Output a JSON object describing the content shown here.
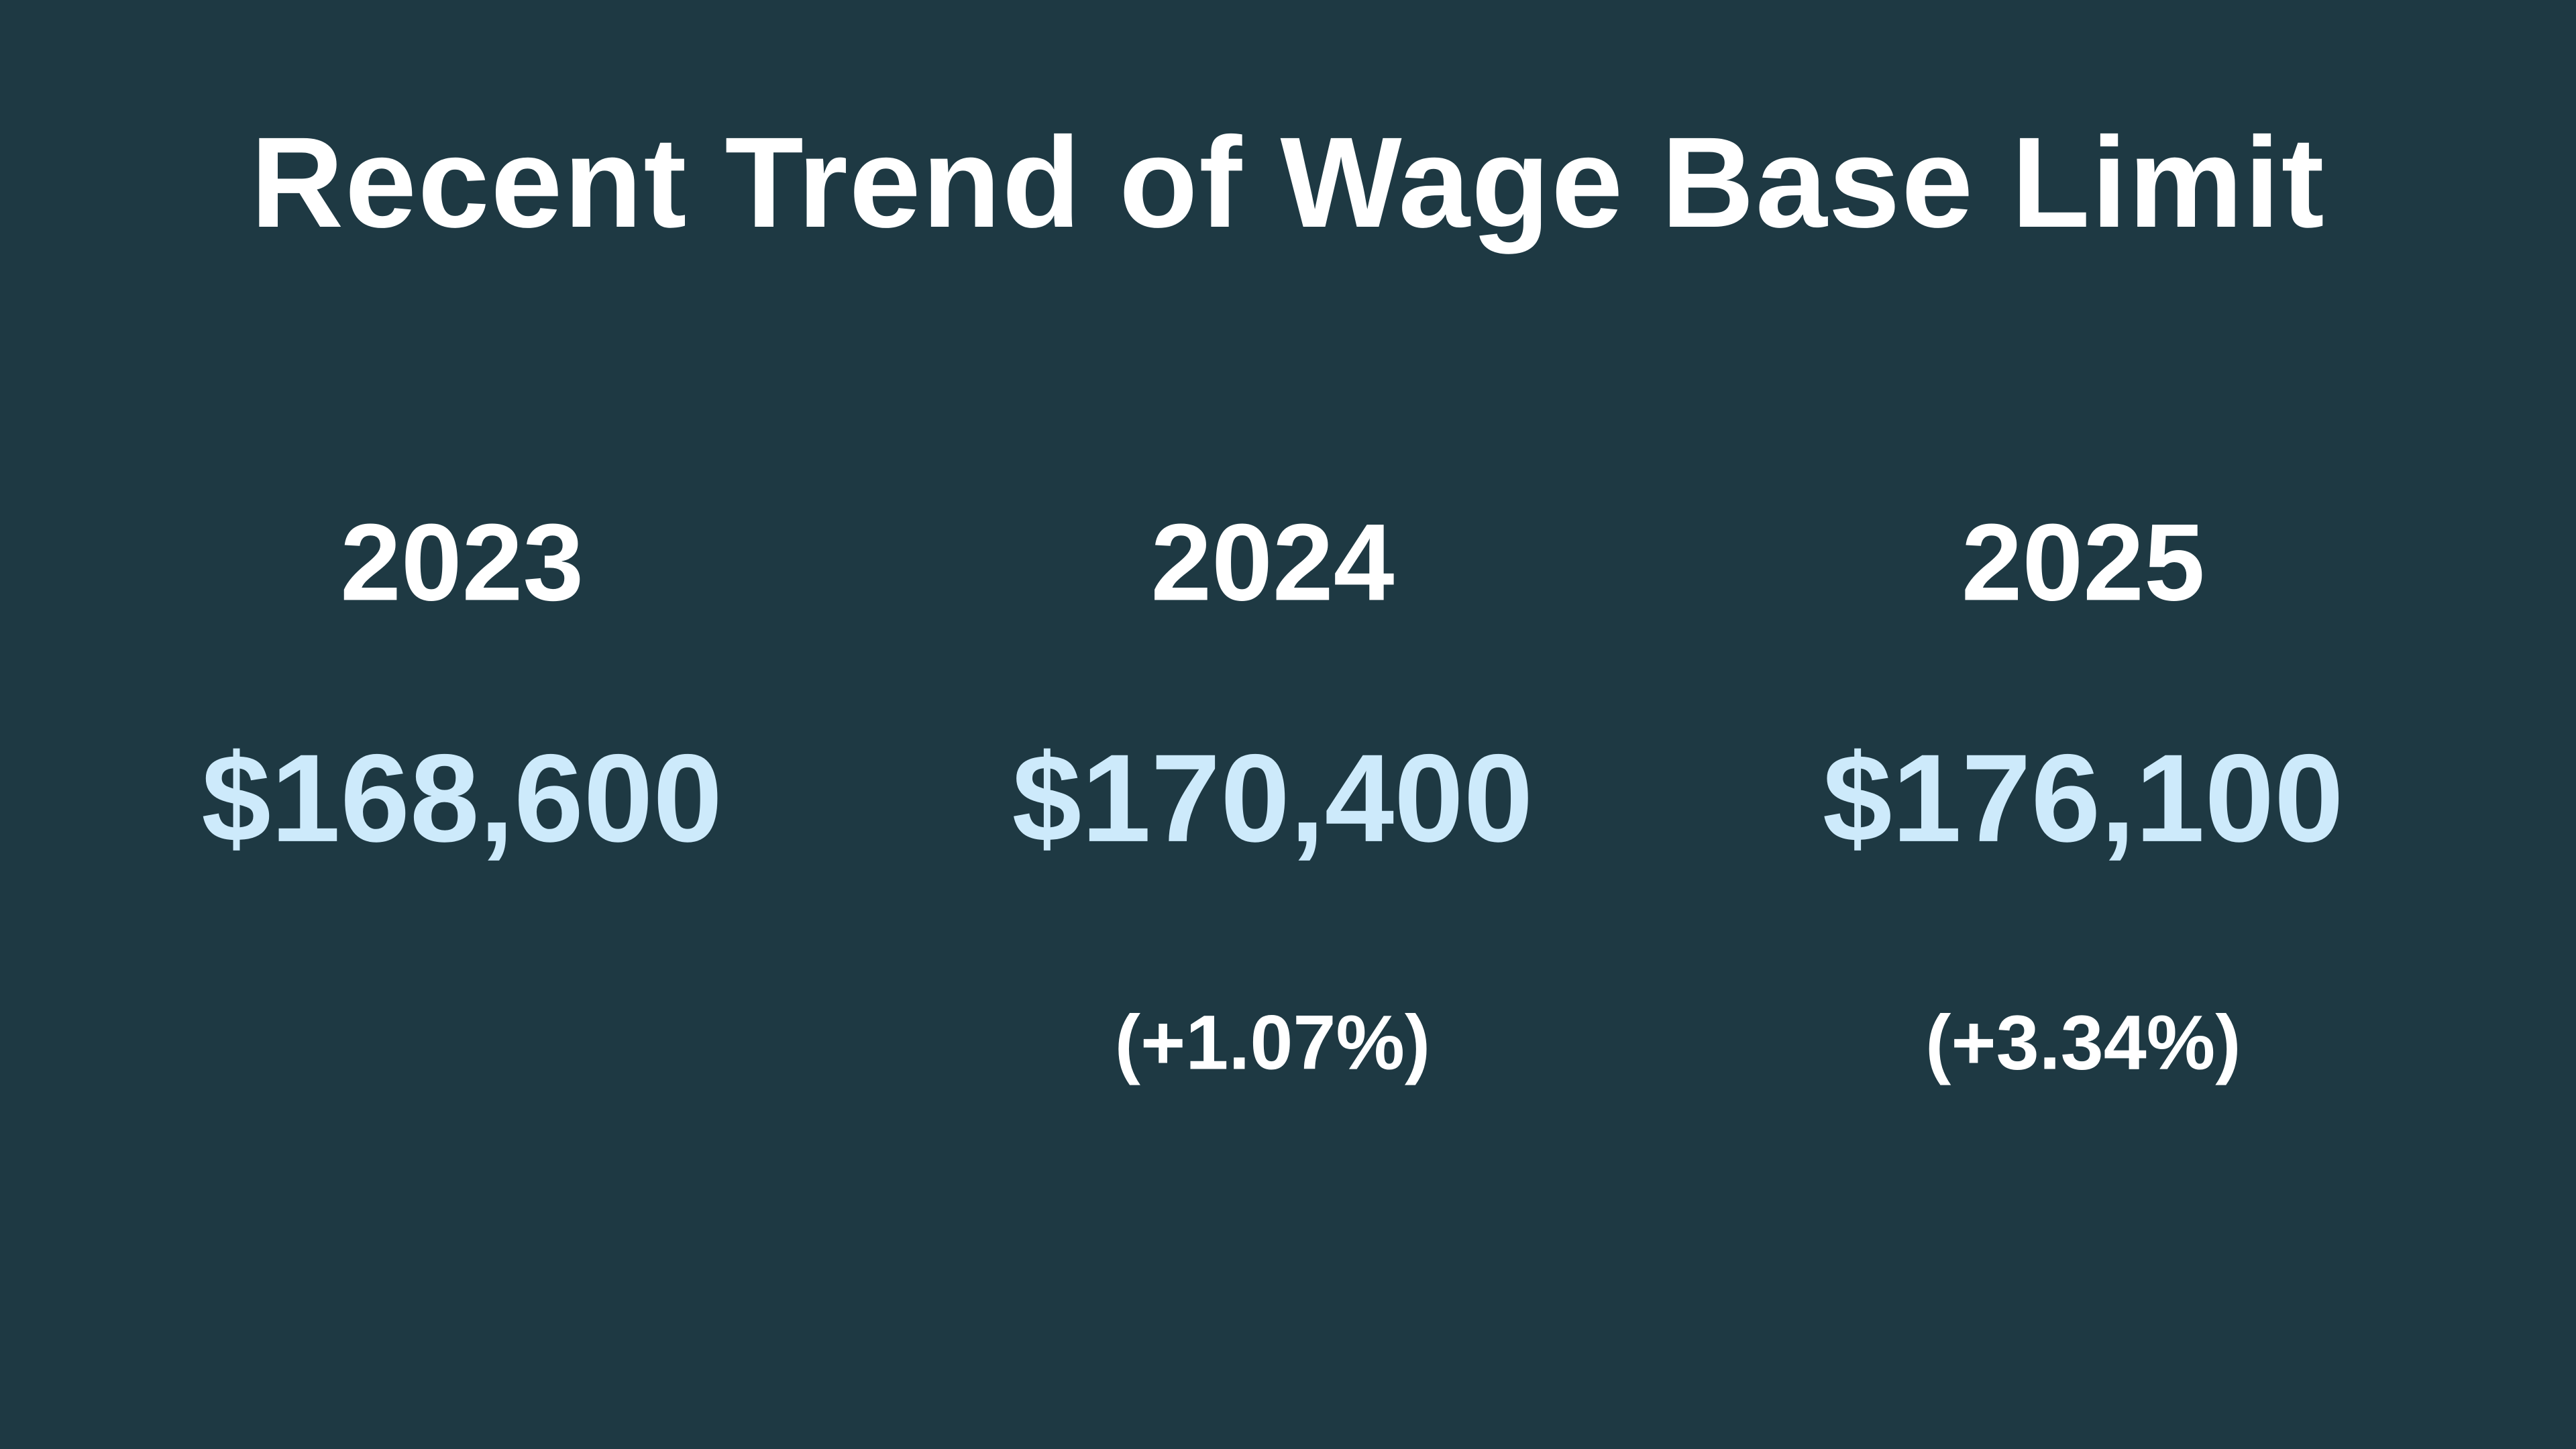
{
  "title": "Recent Trend of Wage Base Limit",
  "columns": [
    {
      "year": "2023",
      "value": "$168,600",
      "change": ""
    },
    {
      "year": "2024",
      "value": "$170,400",
      "change": "(+1.07%)"
    },
    {
      "year": "2025",
      "value": "$176,100",
      "change": "(+3.34%)"
    }
  ],
  "colors": {
    "background": "#1E3943",
    "heading_text": "#FFFFFF",
    "year_text": "#FFFFFF",
    "value_text": "#CDEAFB",
    "change_text": "#FFFFFF"
  },
  "chart_data": {
    "type": "table",
    "title": "Recent Trend of Wage Base Limit",
    "categories": [
      "2023",
      "2024",
      "2025"
    ],
    "values": [
      168600,
      170400,
      176100
    ],
    "value_labels": [
      "$168,600",
      "$170,400",
      "$176,100"
    ],
    "change_labels": [
      "",
      "(+1.07%)",
      "(+3.34%)"
    ],
    "change_pct": [
      null,
      1.07,
      3.34
    ],
    "legend": "none",
    "grid": "off"
  }
}
